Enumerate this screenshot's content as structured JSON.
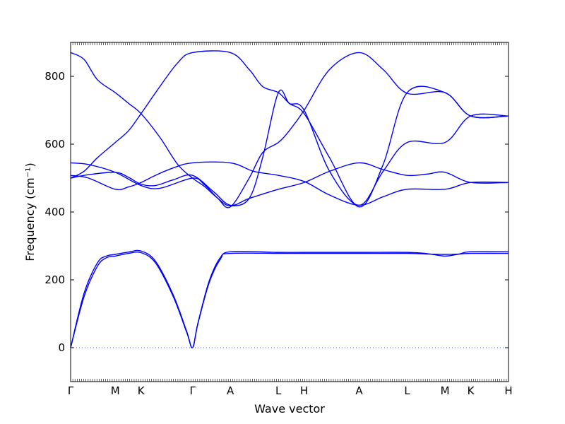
{
  "chart_data": {
    "type": "line",
    "title": "",
    "xlabel": "Wave vector",
    "ylabel": "Frequency (cm⁻¹)",
    "ylim": [
      -100,
      900
    ],
    "yticks": [
      0,
      200,
      400,
      600,
      800
    ],
    "grid": false,
    "line_color": "#0000ff",
    "zero_line_color": "#3355cc",
    "k_points": [
      {
        "label": "Γ",
        "x": 0
      },
      {
        "label": "M",
        "x": 1.0
      },
      {
        "label": "K",
        "x": 1.577
      },
      {
        "label": "Γ",
        "x": 2.731
      },
      {
        "label": "A",
        "x": 3.577
      },
      {
        "label": "L",
        "x": 4.654
      },
      {
        "label": "H",
        "x": 5.231
      },
      {
        "label": "A",
        "x": 6.462
      },
      {
        "label": "L",
        "x": 7.538
      },
      {
        "label": "M",
        "x": 8.385
      },
      {
        "label": "K",
        "x": 8.962
      },
      {
        "label": "H",
        "x": 9.808
      }
    ],
    "series": [
      {
        "values": [
          [
            0,
            0
          ],
          [
            0.3,
            150
          ],
          [
            0.6,
            240
          ],
          [
            0.8,
            265
          ],
          [
            1.0,
            270
          ],
          [
            1.3,
            278
          ],
          [
            1.577,
            280
          ],
          [
            1.9,
            250
          ],
          [
            2.3,
            150
          ],
          [
            2.6,
            45
          ],
          [
            2.731,
            0
          ],
          [
            2.85,
            70
          ],
          [
            3.1,
            190
          ],
          [
            3.35,
            260
          ],
          [
            3.577,
            283
          ],
          [
            4.654,
            281
          ],
          [
            5.231,
            281
          ],
          [
            6.462,
            281
          ],
          [
            7.538,
            281
          ],
          [
            8.0,
            277
          ],
          [
            8.385,
            270
          ],
          [
            8.7,
            276
          ],
          [
            8.962,
            283
          ],
          [
            9.808,
            283
          ]
        ]
      },
      {
        "values": [
          [
            0,
            0
          ],
          [
            0.3,
            160
          ],
          [
            0.6,
            250
          ],
          [
            0.8,
            270
          ],
          [
            1.0,
            275
          ],
          [
            1.3,
            282
          ],
          [
            1.577,
            285
          ],
          [
            1.9,
            255
          ],
          [
            2.3,
            155
          ],
          [
            2.6,
            48
          ],
          [
            2.731,
            0
          ],
          [
            2.85,
            72
          ],
          [
            3.1,
            195
          ],
          [
            3.35,
            265
          ],
          [
            3.577,
            278
          ],
          [
            4.654,
            278
          ],
          [
            5.231,
            278
          ],
          [
            6.462,
            278
          ],
          [
            7.538,
            278
          ],
          [
            8.0,
            276
          ],
          [
            8.385,
            275
          ],
          [
            8.7,
            276
          ],
          [
            8.962,
            278
          ],
          [
            9.808,
            278
          ]
        ]
      },
      {
        "values": [
          [
            0,
            500
          ],
          [
            0.4,
            510
          ],
          [
            1.0,
            517
          ],
          [
            1.3,
            502
          ],
          [
            1.577,
            482
          ],
          [
            1.9,
            478
          ],
          [
            2.3,
            495
          ],
          [
            2.731,
            508
          ],
          [
            3.2,
            460
          ],
          [
            3.577,
            420
          ],
          [
            4.0,
            440
          ],
          [
            4.654,
            467
          ],
          [
            5.231,
            487
          ],
          [
            5.8,
            520
          ],
          [
            6.462,
            545
          ],
          [
            7.0,
            525
          ],
          [
            7.538,
            508
          ],
          [
            8.0,
            512
          ],
          [
            8.385,
            517
          ],
          [
            8.962,
            487
          ],
          [
            9.808,
            487
          ]
        ]
      },
      {
        "values": [
          [
            0,
            508
          ],
          [
            0.4,
            500
          ],
          [
            1.0,
            467
          ],
          [
            1.3,
            474
          ],
          [
            1.577,
            487
          ],
          [
            1.9,
            508
          ],
          [
            2.3,
            530
          ],
          [
            2.731,
            545
          ],
          [
            3.577,
            545
          ],
          [
            4.1,
            520
          ],
          [
            4.654,
            508
          ],
          [
            5.231,
            490
          ],
          [
            5.8,
            450
          ],
          [
            6.462,
            420
          ],
          [
            7.0,
            445
          ],
          [
            7.538,
            467
          ],
          [
            8.385,
            467
          ],
          [
            8.962,
            487
          ],
          [
            9.808,
            487
          ]
        ]
      },
      {
        "values": [
          [
            0,
            545
          ],
          [
            0.4,
            540
          ],
          [
            1.0,
            517
          ],
          [
            1.577,
            478
          ],
          [
            2.0,
            470
          ],
          [
            2.731,
            500
          ],
          [
            3.0,
            480
          ],
          [
            3.3,
            440
          ],
          [
            3.577,
            415
          ],
          [
            4.0,
            500
          ],
          [
            4.3,
            575
          ],
          [
            4.654,
            605
          ],
          [
            4.9,
            640
          ],
          [
            5.231,
            700
          ],
          [
            5.8,
            820
          ],
          [
            6.462,
            870
          ],
          [
            7.0,
            820
          ],
          [
            7.538,
            750
          ],
          [
            8.385,
            752
          ],
          [
            8.962,
            683
          ],
          [
            9.808,
            683
          ]
        ]
      },
      {
        "values": [
          [
            0,
            870
          ],
          [
            0.3,
            850
          ],
          [
            0.6,
            790
          ],
          [
            1.0,
            752
          ],
          [
            1.3,
            720
          ],
          [
            1.577,
            690
          ],
          [
            2.0,
            620
          ],
          [
            2.4,
            540
          ],
          [
            2.731,
            500
          ],
          [
            3.0,
            475
          ],
          [
            3.3,
            440
          ],
          [
            3.577,
            418
          ],
          [
            4.0,
            440
          ],
          [
            4.3,
            560
          ],
          [
            4.654,
            752
          ],
          [
            4.9,
            720
          ],
          [
            5.231,
            700
          ],
          [
            5.8,
            520
          ],
          [
            6.462,
            420
          ],
          [
            7.0,
            520
          ],
          [
            7.538,
            605
          ],
          [
            8.385,
            605
          ],
          [
            8.962,
            683
          ],
          [
            9.808,
            683
          ]
        ]
      },
      {
        "values": [
          [
            0,
            500
          ],
          [
            0.3,
            520
          ],
          [
            0.6,
            560
          ],
          [
            1.0,
            605
          ],
          [
            1.3,
            640
          ],
          [
            1.577,
            690
          ],
          [
            2.0,
            770
          ],
          [
            2.4,
            840
          ],
          [
            2.731,
            870
          ],
          [
            3.577,
            870
          ],
          [
            4.0,
            820
          ],
          [
            4.3,
            770
          ],
          [
            4.654,
            752
          ],
          [
            4.9,
            720
          ],
          [
            5.231,
            690
          ],
          [
            5.8,
            560
          ],
          [
            6.462,
            415
          ],
          [
            7.0,
            540
          ],
          [
            7.538,
            752
          ],
          [
            8.385,
            752
          ],
          [
            8.962,
            683
          ],
          [
            9.808,
            683
          ]
        ]
      }
    ]
  }
}
